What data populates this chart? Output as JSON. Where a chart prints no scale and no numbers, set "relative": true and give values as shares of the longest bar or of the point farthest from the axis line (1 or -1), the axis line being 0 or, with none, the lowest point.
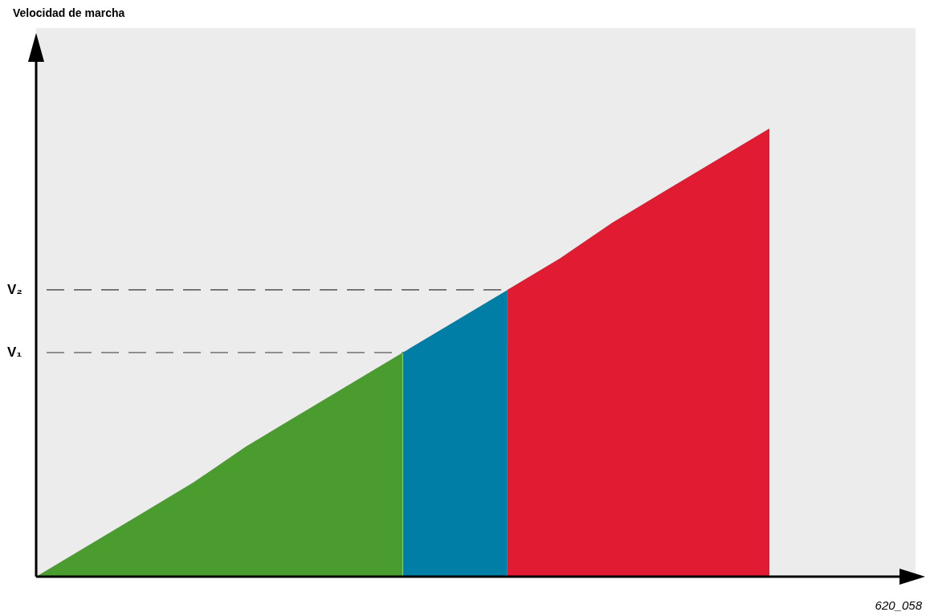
{
  "chart_data": {
    "type": "area",
    "relative": true,
    "annotations": [
      "Velocidad de marcha",
      "620_058"
    ],
    "categories": [
      null,
      null,
      null,
      null,
      null,
      null,
      null,
      null,
      null,
      null,
      null,
      null,
      null,
      null,
      null
    ],
    "series": [
      {
        "color": "#4a9c2f",
        "values": [
          0,
          0.07,
          0.14,
          0.21,
          0.29,
          0.36,
          0.43,
          0.5,
          null,
          null,
          null,
          null,
          null,
          null,
          null
        ]
      },
      {
        "color": "#007ea6",
        "values": [
          null,
          null,
          null,
          null,
          null,
          null,
          null,
          0.5,
          0.57,
          0.64,
          null,
          null,
          null,
          null,
          null
        ]
      },
      {
        "color": "#e11b31",
        "values": [
          null,
          null,
          null,
          null,
          null,
          null,
          null,
          null,
          null,
          0.64,
          0.71,
          0.79,
          0.86,
          0.93,
          1
        ]
      }
    ],
    "ref_lines": [
      {
        "axis": "y",
        "value": 0.5,
        "label": "V₁",
        "line_style": "dashed"
      },
      {
        "axis": "y",
        "value": 0.64,
        "label": "V₂",
        "line_style": "dashed"
      }
    ]
  }
}
